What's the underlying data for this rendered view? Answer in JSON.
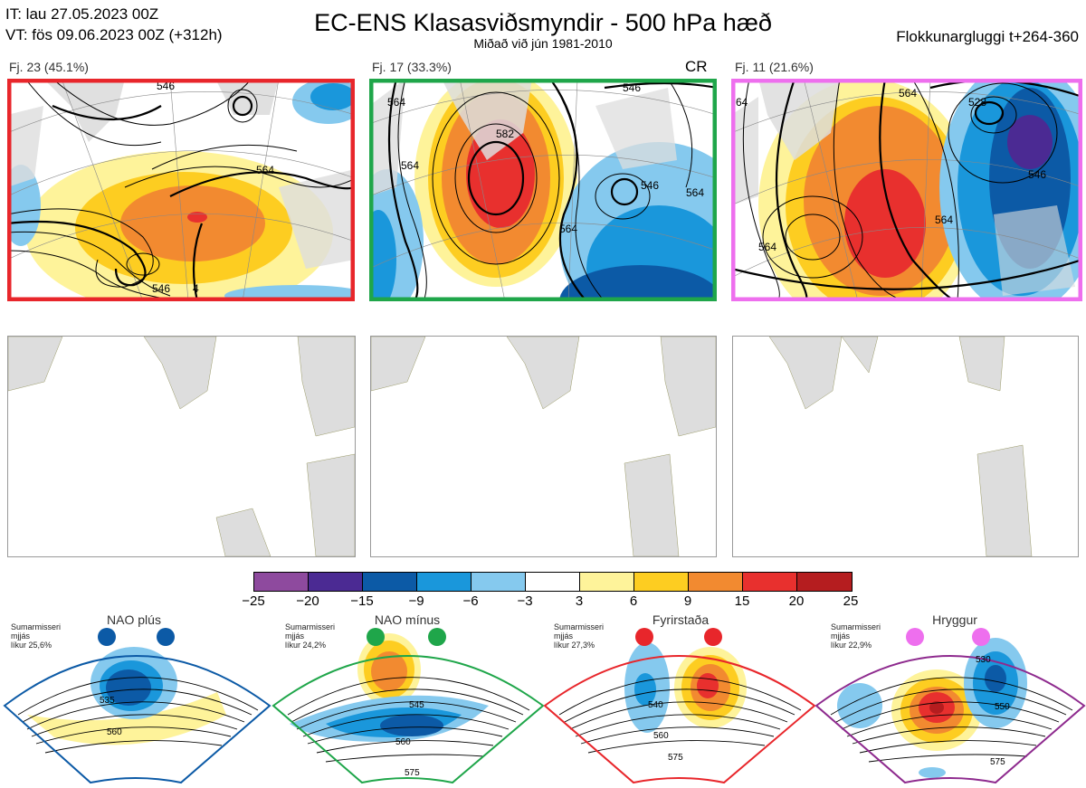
{
  "header": {
    "it_line": "IT: lau 27.05.2023 00Z",
    "vt_line": "VT: fös 09.06.2023 00Z  (+312h)",
    "title": "EC-ENS Klasasviðsmyndir - 500 hPa hæð",
    "subtitle": "Miðað við jún 1981-2010",
    "window": "Flokkunargluggi t+264-360"
  },
  "clusters": [
    {
      "label": "Fj. 23 (45.1%)",
      "border_color": "#e8262b",
      "contours": [
        "546",
        "564",
        "546",
        "4"
      ]
    },
    {
      "label": "Fj. 17 (33.3%)",
      "border_color": "#1fa64a",
      "tag": "CR",
      "contours": [
        "564",
        "546",
        "582",
        "564",
        "546",
        "564",
        "564"
      ]
    },
    {
      "label": "Fj. 11 (21.6%)",
      "border_color": "#ee6fee",
      "contours": [
        "64",
        "564",
        "528",
        "546",
        "564",
        "564"
      ]
    }
  ],
  "colorbar": {
    "colors": [
      "#8e4a9e",
      "#4b2a93",
      "#0c5aa6",
      "#1a97db",
      "#85c9ee",
      "#ffffff",
      "#fef39a",
      "#fdcd21",
      "#f28a30",
      "#e8302e",
      "#b51d1f"
    ],
    "ticks": [
      "−25",
      "−20",
      "−15",
      "−9",
      "−6",
      "−3",
      "3",
      "6",
      "9",
      "15",
      "20",
      "25"
    ]
  },
  "regimes": [
    {
      "name": "NAO plús",
      "info": [
        "Sumarmisseri",
        "mjjás",
        "líkur 25,6%"
      ],
      "dot_color": "#0c5aa6",
      "frame_color": "#0c5aa6",
      "contours": [
        "535",
        "560"
      ]
    },
    {
      "name": "NAO mínus",
      "info": [
        "Sumarmisseri",
        "mjjás",
        "líkur 24,2%"
      ],
      "dot_color": "#1fa64a",
      "frame_color": "#1fa64a",
      "contours": [
        "545",
        "560",
        "575"
      ]
    },
    {
      "name": "Fyrirstaða",
      "info": [
        "Sumarmisseri",
        "mjjás",
        "líkur 27,3%"
      ],
      "dot_color": "#e8262b",
      "frame_color": "#e8262b",
      "contours": [
        "540",
        "560",
        "575"
      ]
    },
    {
      "name": "Hryggur",
      "info": [
        "Sumarmisseri",
        "mjjás",
        "líkur 22,9%"
      ],
      "dot_color": "#ee6fee",
      "frame_color": "#8e2a8e",
      "contours": [
        "530",
        "550",
        "575"
      ]
    }
  ]
}
